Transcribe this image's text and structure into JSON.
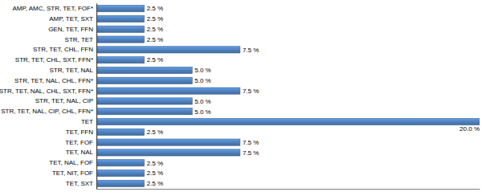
{
  "chart_data": {
    "type": "bar",
    "orientation": "horizontal",
    "categories": [
      "AMP, AMC, STR, TET, FOF*",
      "AMP, TET, SXT",
      "GEN, TET, FFN",
      "STR, TET",
      "STR, TET, CHL, FFN",
      "STR, TET, CHL, SXT, FFN*",
      "STR, TET, NAL",
      "STR, TET, NAL, CHL, FFN*",
      "STR, TET, NAL, CHL, SXT, FFN*",
      "STR, TET, NAL, CIP",
      "STR, TET, NAL, CIP, CHL, FFN*",
      "TET",
      "TET, FFN",
      "TET, FOF",
      "TET, NAL",
      "TET, NAL, FOF",
      "TET, NIT, FOF",
      "TET, SXT"
    ],
    "values": [
      2.5,
      2.5,
      2.5,
      2.5,
      7.5,
      2.5,
      5.0,
      5.0,
      7.5,
      5.0,
      5.0,
      20.0,
      2.5,
      7.5,
      7.5,
      2.5,
      2.5,
      2.5
    ],
    "value_labels": [
      "2.5 %",
      "2.5 %",
      "2.5 %",
      "2.5 %",
      "7.5 %",
      "2.5 %",
      "5.0 %",
      "5.0 %",
      "7.5 %",
      "5.0 %",
      "5.0 %",
      "20.0 %",
      "2.5 %",
      "7.5 %",
      "7.5 %",
      "2.5 %",
      "2.5 %",
      "2.5 %"
    ],
    "data_labels": true,
    "color": "#4f81bd",
    "xlim": [
      0,
      20
    ],
    "tick_labels": "y",
    "grid": false
  }
}
